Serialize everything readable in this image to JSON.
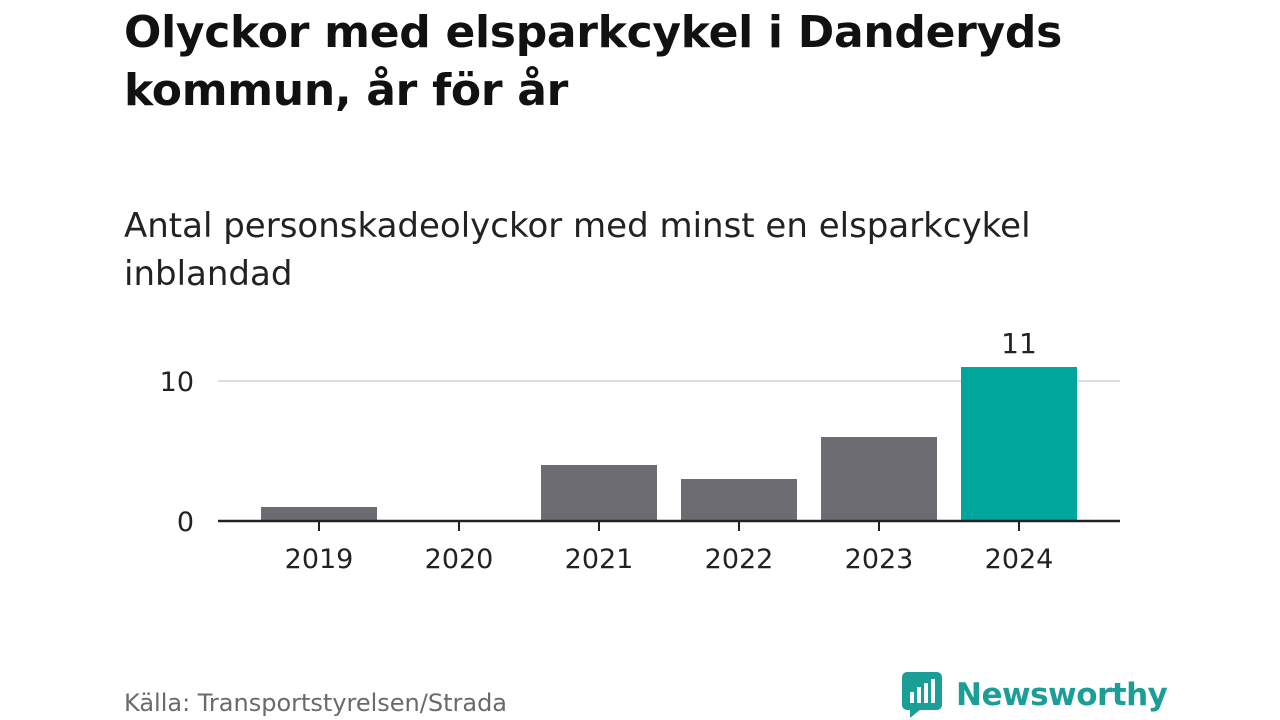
{
  "header": {
    "title": "Olyckor med elsparkcykel i Danderyds kommun, år för år",
    "subtitle": "Antal personskadeolyckor med minst en elsparkcykel inblandad"
  },
  "footer": {
    "source": "Källa: Transportstyrelsen/Strada",
    "brand_name": "Newsworthy",
    "brand_icon": "newsworthy-logo-icon"
  },
  "colors": {
    "bar_default": "#6d6c72",
    "bar_highlight": "#00a59b",
    "gridline": "#dddddd",
    "axis": "#222222",
    "brand": "#1a9e95"
  },
  "chart_data": {
    "type": "bar",
    "categories": [
      "2019",
      "2020",
      "2021",
      "2022",
      "2023",
      "2024"
    ],
    "values": [
      1,
      0,
      4,
      3,
      6,
      11
    ],
    "highlight_index": 5,
    "data_labels": [
      {
        "index": 5,
        "text": "11"
      }
    ],
    "yticks": [
      0,
      10
    ],
    "ylim": [
      0,
      11
    ],
    "grid": true,
    "title": "Olyckor med elsparkcykel i Danderyds kommun, år för år",
    "subtitle": "Antal personskadeolyckor med minst en elsparkcykel inblandad",
    "xlabel": "",
    "ylabel": ""
  }
}
